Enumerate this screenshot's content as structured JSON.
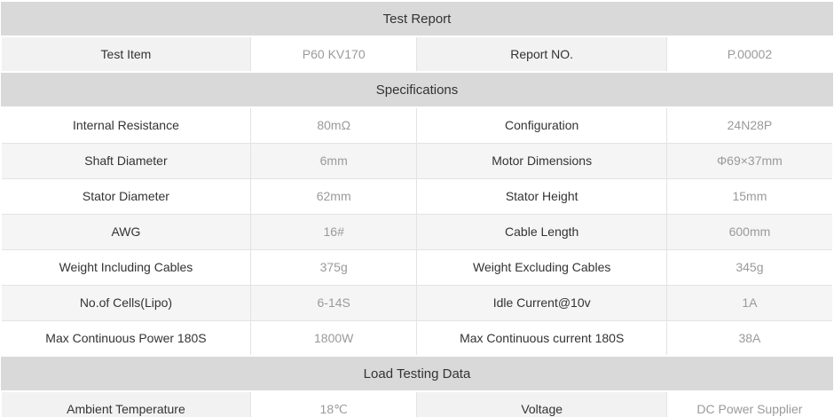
{
  "report_table": {
    "colors": {
      "section_bg": "#d9d9d9",
      "section_text": "#333333",
      "stripe_bg": "#f5f5f5",
      "label_tint_bg": "#f2f2f2",
      "border": "#e3e3e3",
      "label_text": "#333333",
      "value_text": "#9a9a9a"
    },
    "column_widths_percent": [
      30,
      20,
      30,
      20
    ],
    "rows": [
      {
        "type": "section",
        "label": "Test Report"
      },
      {
        "type": "data",
        "variant": "label-tinted",
        "cells": [
          {
            "kind": "label",
            "text": "Test Item"
          },
          {
            "kind": "value",
            "text": "P60 KV170"
          },
          {
            "kind": "label",
            "text": "Report NO."
          },
          {
            "kind": "value",
            "text": "P.00002"
          }
        ]
      },
      {
        "type": "section",
        "label": "Specifications"
      },
      {
        "type": "data",
        "variant": "plain",
        "cells": [
          {
            "kind": "label",
            "text": "Internal Resistance"
          },
          {
            "kind": "value",
            "text": "80mΩ"
          },
          {
            "kind": "label",
            "text": "Configuration"
          },
          {
            "kind": "value",
            "text": "24N28P"
          }
        ]
      },
      {
        "type": "data",
        "variant": "striped",
        "cells": [
          {
            "kind": "label",
            "text": "Shaft Diameter"
          },
          {
            "kind": "value",
            "text": "6mm"
          },
          {
            "kind": "label",
            "text": "Motor Dimensions"
          },
          {
            "kind": "value",
            "text": "Φ69×37mm"
          }
        ]
      },
      {
        "type": "data",
        "variant": "plain",
        "cells": [
          {
            "kind": "label",
            "text": "Stator Diameter"
          },
          {
            "kind": "value",
            "text": "62mm"
          },
          {
            "kind": "label",
            "text": "Stator Height"
          },
          {
            "kind": "value",
            "text": "15mm"
          }
        ]
      },
      {
        "type": "data",
        "variant": "striped",
        "cells": [
          {
            "kind": "label",
            "text": "AWG"
          },
          {
            "kind": "value",
            "text": "16#"
          },
          {
            "kind": "label",
            "text": "Cable Length"
          },
          {
            "kind": "value",
            "text": "600mm"
          }
        ]
      },
      {
        "type": "data",
        "variant": "plain",
        "cells": [
          {
            "kind": "label",
            "text": "Weight Including Cables"
          },
          {
            "kind": "value",
            "text": "375g"
          },
          {
            "kind": "label",
            "text": "Weight Excluding Cables"
          },
          {
            "kind": "value",
            "text": "345g"
          }
        ]
      },
      {
        "type": "data",
        "variant": "striped",
        "cells": [
          {
            "kind": "label",
            "text": "No.of Cells(Lipo)"
          },
          {
            "kind": "value",
            "text": "6-14S"
          },
          {
            "kind": "label",
            "text": "Idle Current@10v"
          },
          {
            "kind": "value",
            "text": "1A"
          }
        ]
      },
      {
        "type": "data",
        "variant": "plain",
        "cells": [
          {
            "kind": "label",
            "text": "Max Continuous Power 180S"
          },
          {
            "kind": "value",
            "text": "1800W"
          },
          {
            "kind": "label",
            "text": "Max Continuous current 180S"
          },
          {
            "kind": "value",
            "text": "38A"
          }
        ]
      },
      {
        "type": "section",
        "label": "Load Testing Data"
      },
      {
        "type": "data",
        "variant": "label-tinted",
        "cells": [
          {
            "kind": "label",
            "text": "Ambient Temperature"
          },
          {
            "kind": "value",
            "text": "18℃"
          },
          {
            "kind": "label",
            "text": "Voltage"
          },
          {
            "kind": "value",
            "text": "DC Power Supplier"
          }
        ]
      }
    ]
  }
}
